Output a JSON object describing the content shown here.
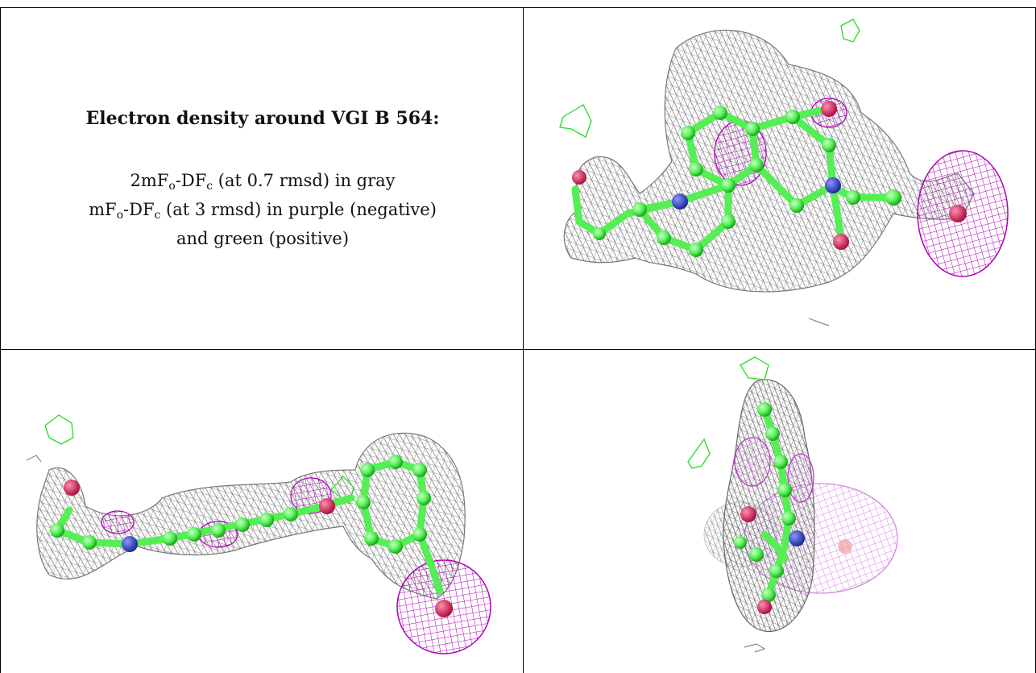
{
  "heading": "Electron density around VGI B 564:",
  "legend": {
    "line1_pre": "2mF",
    "line1_sub1": "o",
    "line1_mid": "-DF",
    "line1_sub2": "c",
    "line1_post": " (at 0.7 rmsd) in gray",
    "line2_pre": "mF",
    "line2_sub1": "o",
    "line2_mid": "-DF",
    "line2_sub2": "c",
    "line2_post": " (at 3 rmsd) in purple (negative)",
    "line3": "and green (positive)"
  },
  "colors": {
    "two_fo_fc": "#8a8a8a",
    "fo_fc_negative": "#b000b8",
    "fo_fc_positive": "#22dd22",
    "carbon": "#55ee55",
    "nitrogen": "#3344cc",
    "oxygen": "#dd2255"
  }
}
